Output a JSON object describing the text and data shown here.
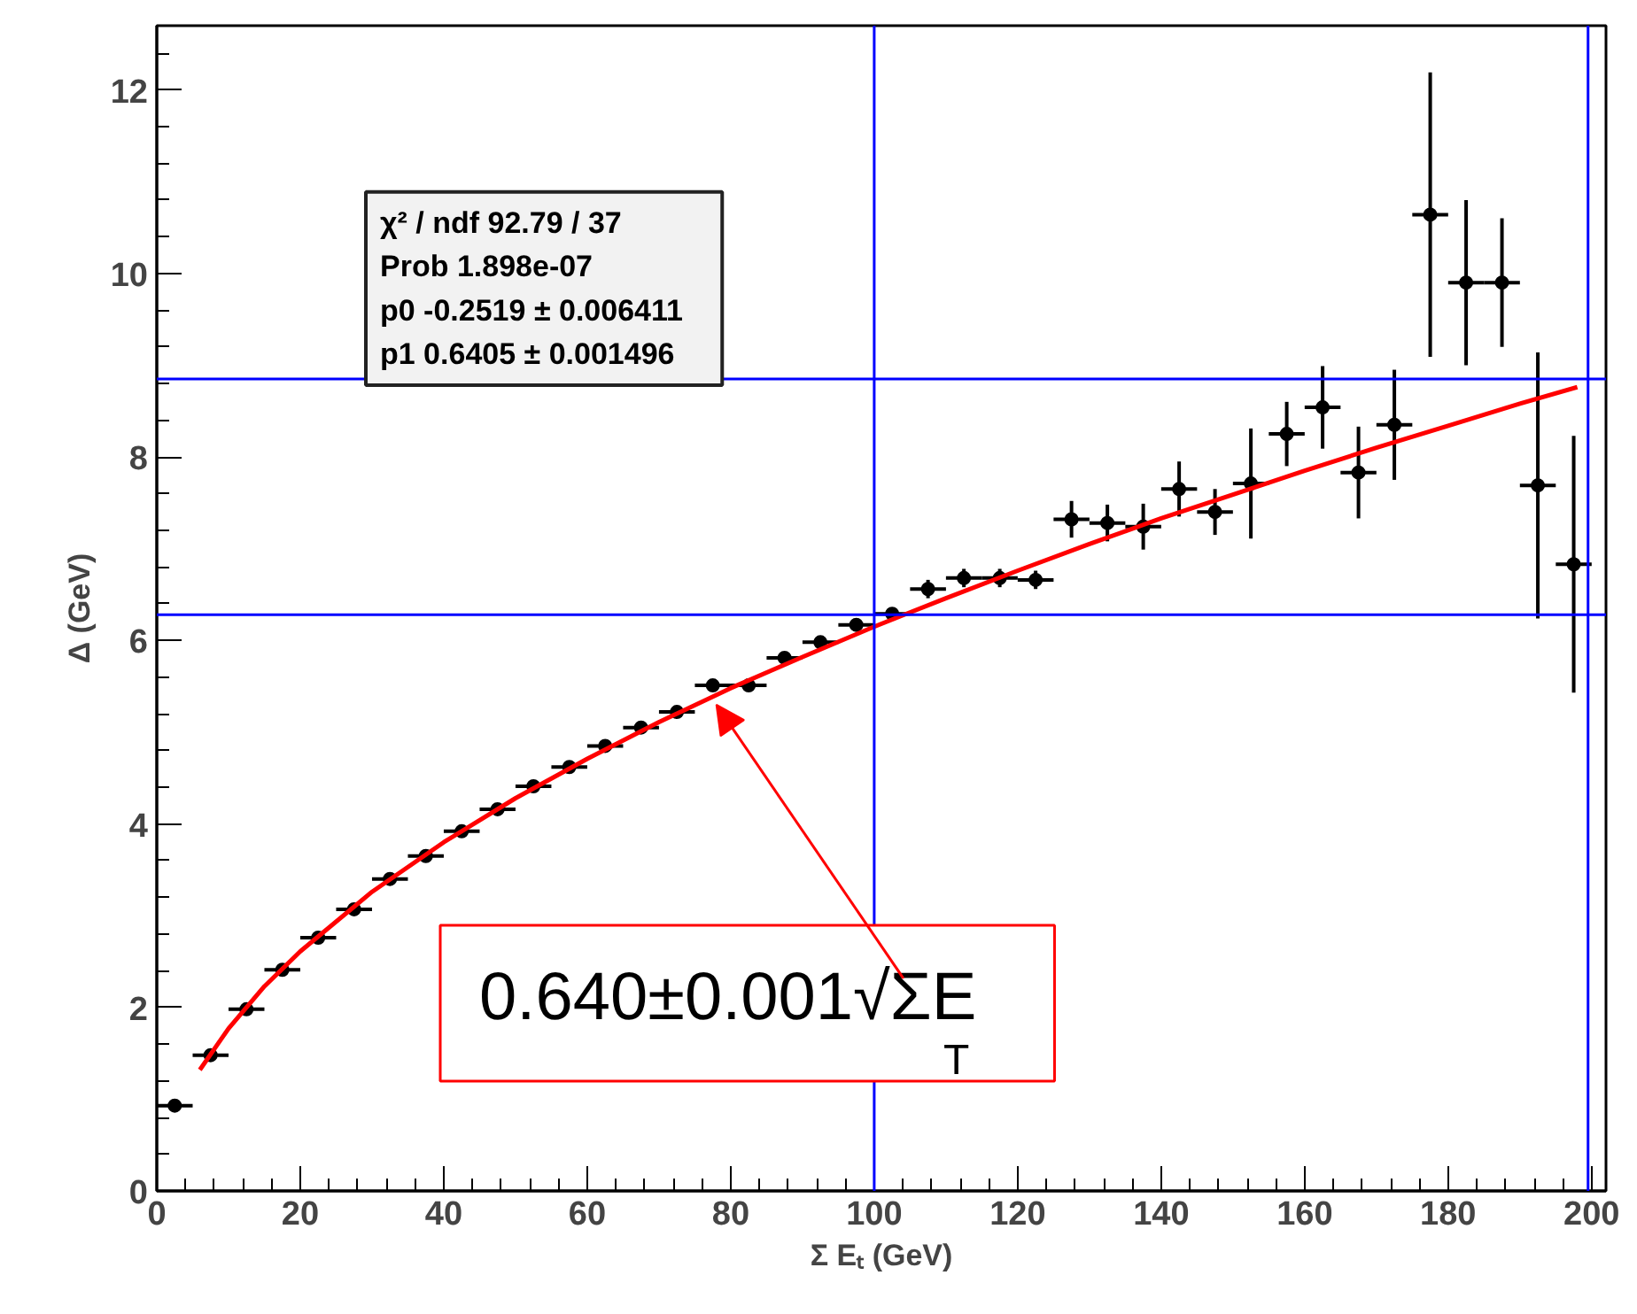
{
  "chart_data": {
    "type": "scatter",
    "xlabel": "Σ Eₜ (GeV)",
    "ylabel": "Δ (GeV)",
    "xlim": [
      0,
      202
    ],
    "ylim": [
      0,
      12.7
    ],
    "xticks": [
      0,
      20,
      40,
      60,
      80,
      100,
      120,
      140,
      160,
      180,
      200
    ],
    "yticks": [
      0,
      2,
      4,
      6,
      8,
      10,
      12
    ],
    "grid": false,
    "marker": "circle",
    "series": [
      {
        "color": "#000000",
        "x": [
          2.5,
          7.5,
          12.5,
          17.5,
          22.5,
          27.5,
          32.5,
          37.5,
          42.5,
          47.5,
          52.5,
          57.5,
          62.5,
          67.5,
          72.5,
          77.5,
          82.5,
          87.5,
          92.5,
          97.5,
          102.5,
          107.5,
          112.5,
          117.5,
          122.5,
          127.5,
          132.5,
          137.5,
          142.5,
          147.5,
          152.5,
          157.5,
          162.5,
          167.5,
          172.5,
          177.5,
          182.5,
          187.5,
          192.5,
          197.5
        ],
        "values": [
          0.93,
          1.48,
          1.98,
          2.41,
          2.76,
          3.07,
          3.4,
          3.65,
          3.92,
          4.16,
          4.41,
          4.62,
          4.85,
          5.05,
          5.22,
          5.51,
          5.51,
          5.81,
          5.98,
          6.17,
          6.29,
          6.56,
          6.68,
          6.68,
          6.66,
          7.32,
          7.28,
          7.24,
          7.65,
          7.4,
          7.71,
          8.25,
          8.54,
          7.83,
          8.35,
          10.64,
          9.9,
          9.9,
          7.69,
          6.83
        ],
        "errors": [
          null,
          null,
          null,
          null,
          null,
          null,
          null,
          null,
          null,
          null,
          null,
          null,
          null,
          null,
          null,
          null,
          null,
          null,
          null,
          null,
          null,
          0.1,
          0.1,
          0.1,
          0.1,
          0.2,
          0.2,
          0.25,
          0.3,
          0.25,
          0.6,
          0.35,
          0.45,
          0.5,
          0.6,
          1.55,
          0.9,
          0.7,
          1.45,
          1.4
        ],
        "xerrors": [
          2.5,
          2.5,
          2.5,
          2.5,
          2.5,
          2.5,
          2.5,
          2.5,
          2.5,
          2.5,
          2.5,
          2.5,
          2.5,
          2.5,
          2.5,
          2.5,
          2.5,
          2.5,
          2.5,
          2.5,
          2.5,
          2.5,
          2.5,
          2.5,
          2.5,
          2.5,
          2.5,
          2.5,
          2.5,
          2.5,
          2.5,
          2.5,
          2.5,
          2.5,
          2.5,
          2.5,
          2.5,
          2.5,
          2.5,
          2.5
        ]
      },
      {
        "type": "line",
        "color": "#ff0000",
        "line_style": "solid",
        "marker": "none",
        "x": [
          6,
          10,
          15,
          20,
          30,
          40,
          50,
          60,
          70,
          80,
          90,
          100,
          110,
          120,
          130,
          140,
          150,
          160,
          170,
          180,
          190,
          198
        ],
        "values": [
          1.32,
          1.77,
          2.23,
          2.61,
          3.26,
          3.8,
          4.28,
          4.71,
          5.11,
          5.48,
          5.82,
          6.15,
          6.46,
          6.76,
          7.05,
          7.33,
          7.59,
          7.85,
          8.1,
          8.34,
          8.58,
          8.76
        ]
      }
    ],
    "ref_lines": [
      {
        "axis": "y",
        "value": 6.28,
        "color": "#0000ff",
        "line_style": "solid"
      },
      {
        "axis": "x",
        "value": 100,
        "color": "#0000ff",
        "line_style": "solid"
      },
      {
        "axis": "y",
        "value": 8.85,
        "color": "#0000ff",
        "line_style": "solid"
      },
      {
        "axis": "x",
        "value": 199.5,
        "color": "#0000ff",
        "line_style": "solid"
      }
    ],
    "annotations": [
      "χ² / ndf    92.79 / 37",
      "Prob    1.898e-07",
      "p0    -0.2519 ± 0.006411",
      "p1    0.6405 ± 0.001496",
      {
        "text": "0.640±0.001√ΣE$_{T}$",
        "x": 78,
        "y": 5.3
      }
    ]
  }
}
